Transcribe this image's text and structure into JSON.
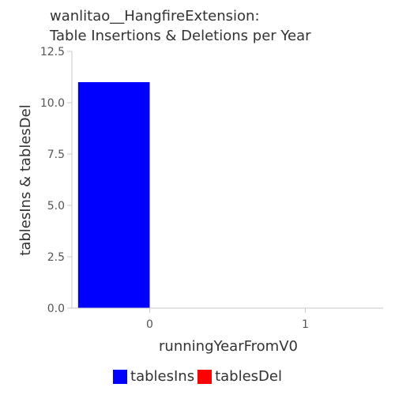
{
  "chart_data": {
    "type": "bar",
    "title_lines": [
      "wanlitao__HangfireExtension:",
      "Table Insertions & Deletions per Year"
    ],
    "xlabel": "runningYearFromV0",
    "ylabel": "tablesIns & tablesDel",
    "categories": [
      "0",
      "1"
    ],
    "series": [
      {
        "name": "tablesIns",
        "color": "#0000ff",
        "values": [
          11,
          0
        ]
      },
      {
        "name": "tablesDel",
        "color": "#ff0000",
        "values": [
          0,
          0
        ]
      }
    ],
    "ylim": [
      0,
      12.5
    ],
    "yticks": [
      "0.0",
      "2.5",
      "5.0",
      "7.5",
      "10.0",
      "12.5"
    ],
    "grid": false,
    "legend_position": "bottom"
  }
}
